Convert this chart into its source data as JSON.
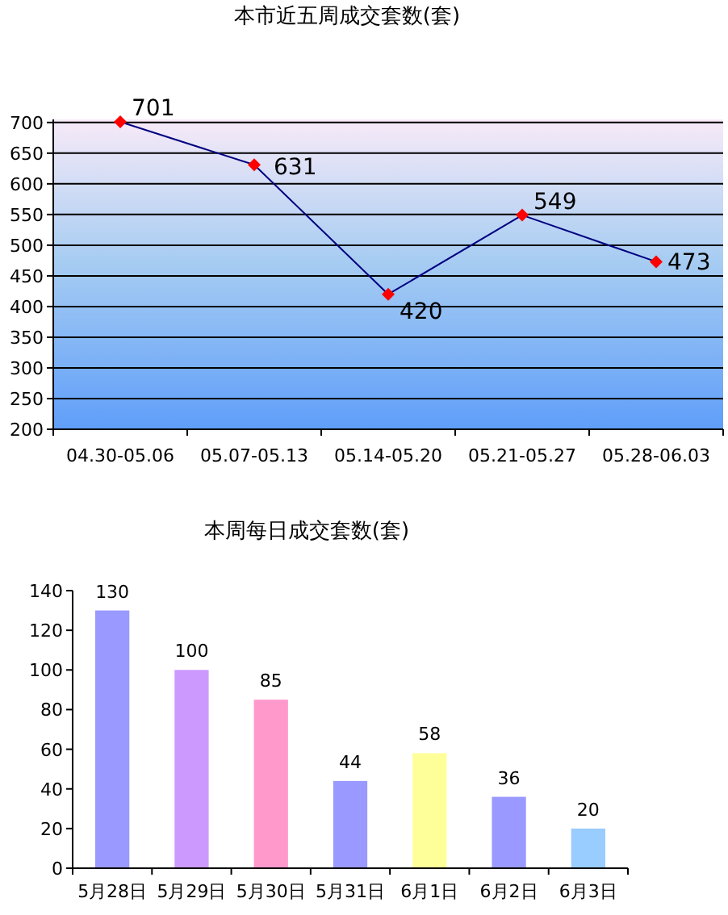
{
  "chart_data": [
    {
      "type": "line",
      "title": "本市近五周成交套数(套)",
      "categories": [
        "04.30-05.06",
        "05.07-05.13",
        "05.14-05.20",
        "05.21-05.27",
        "05.28-06.03"
      ],
      "series": [
        {
          "color": "#000080",
          "values": [
            701,
            631,
            420,
            549,
            473
          ]
        }
      ],
      "ylim": [
        200,
        705
      ],
      "yticks": [
        200,
        250,
        300,
        350,
        400,
        450,
        500,
        550,
        600,
        650,
        700
      ],
      "grid": "y",
      "marker": "diamond",
      "line_style": "solid",
      "data_labels": true
    },
    {
      "type": "bar",
      "title": "本周每日成交套数(套)",
      "categories": [
        "5月28日",
        "5月29日",
        "5月30日",
        "5月31日",
        "6月1日",
        "6月2日",
        "6月3日"
      ],
      "values": [
        130,
        100,
        85,
        44,
        58,
        36,
        20
      ],
      "colors": [
        "#9999ff",
        "#cc99ff",
        "#ff99cc",
        "#9999ff",
        "#ffff99",
        "#9999ff",
        "#99ccff"
      ],
      "ylim": [
        0,
        140
      ],
      "yticks": [
        0,
        20,
        40,
        60,
        80,
        100,
        120,
        140
      ],
      "grid": false,
      "data_labels": true
    }
  ]
}
